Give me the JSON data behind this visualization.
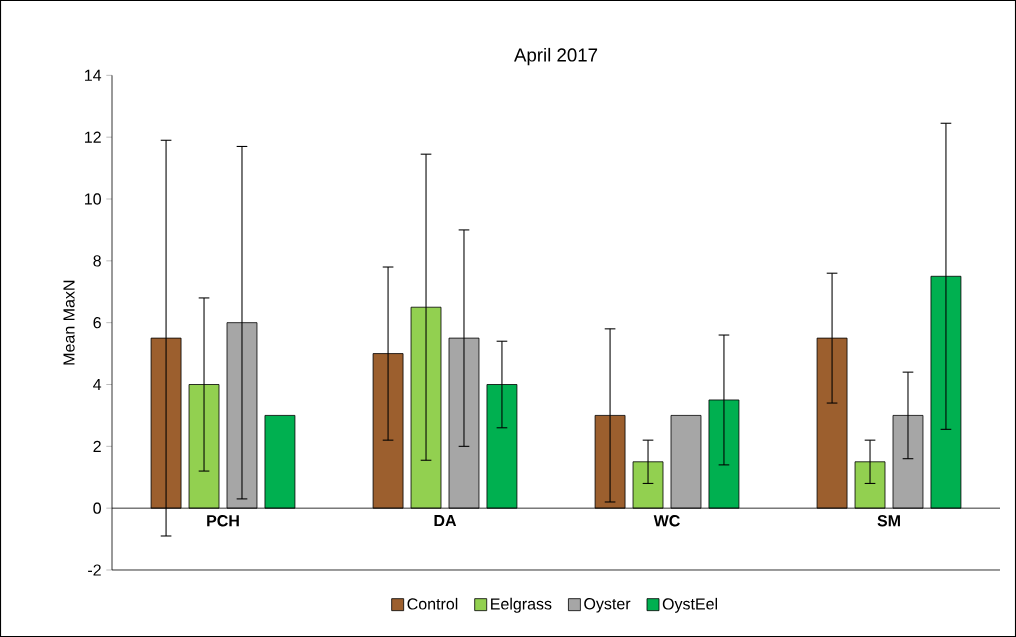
{
  "chart_data": {
    "type": "bar",
    "title": "April 2017",
    "ylabel": "Mean MaxN",
    "categories": [
      "PCH",
      "DA",
      "WC",
      "SM"
    ],
    "series": [
      {
        "name": "Control",
        "color": "#9c5f2e",
        "values": [
          5.5,
          5,
          3,
          5.5
        ],
        "errors": [
          6.4,
          2.8,
          2.8,
          2.1
        ]
      },
      {
        "name": "Eelgrass",
        "color": "#92d050",
        "values": [
          4,
          6.5,
          1.5,
          1.5
        ],
        "errors": [
          2.8,
          4.95,
          0.7,
          0.7
        ]
      },
      {
        "name": "Oyster",
        "color": "#a6a6a6",
        "values": [
          6,
          5.5,
          3,
          3
        ],
        "errors": [
          5.7,
          3.5,
          null,
          1.4
        ]
      },
      {
        "name": "OystEel",
        "color": "#00b050",
        "values": [
          3,
          4,
          3.5,
          7.5
        ],
        "errors": [
          null,
          1.4,
          2.1,
          4.95
        ]
      }
    ],
    "ylim": [
      -2,
      14
    ],
    "yticks": [
      -2,
      0,
      2,
      4,
      6,
      8,
      10,
      12,
      14
    ],
    "grid": false,
    "legend": "bottom"
  }
}
